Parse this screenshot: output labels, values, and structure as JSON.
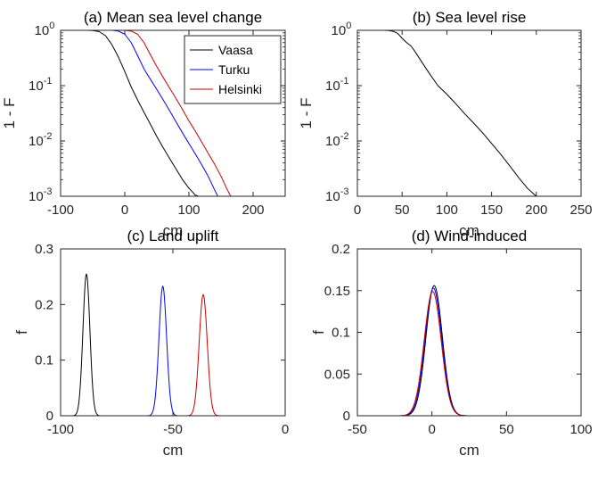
{
  "chart_data": [
    {
      "id": "a",
      "type": "line",
      "title": "(a) Mean sea level change",
      "xlabel": "cm",
      "ylabel": "1 - F",
      "xlim": [
        -100,
        250
      ],
      "ylim": [
        0.001,
        1
      ],
      "yscale": "log",
      "xticks": [
        -100,
        0,
        100,
        200
      ],
      "yticks": [
        {
          "value": 1,
          "base": "10",
          "exp": "0"
        },
        {
          "value": 0.1,
          "base": "10",
          "exp": "-1"
        },
        {
          "value": 0.01,
          "base": "10",
          "exp": "-2"
        },
        {
          "value": 0.001,
          "base": "10",
          "exp": "-3"
        }
      ],
      "legend": {
        "position": "top-right",
        "entries": [
          "Vaasa",
          "Turku",
          "Helsinki"
        ]
      },
      "series": [
        {
          "name": "Vaasa",
          "color": "#000000",
          "x": [
            -100,
            -60,
            -50,
            -40,
            -30,
            -20,
            -10,
            0,
            10,
            20,
            30,
            40,
            50,
            60,
            70,
            80,
            90,
            100,
            110,
            115
          ],
          "y": [
            1,
            1,
            0.99,
            0.95,
            0.8,
            0.55,
            0.33,
            0.18,
            0.095,
            0.055,
            0.033,
            0.02,
            0.012,
            0.0075,
            0.0048,
            0.0031,
            0.002,
            0.0014,
            0.00105,
            0.001
          ]
        },
        {
          "name": "Turku",
          "color": "#0000ff",
          "x": [
            -100,
            -20,
            -10,
            0,
            10,
            20,
            30,
            40,
            50,
            60,
            70,
            80,
            90,
            100,
            110,
            120,
            130,
            140,
            145
          ],
          "y": [
            1,
            1,
            0.97,
            0.85,
            0.6,
            0.35,
            0.2,
            0.13,
            0.085,
            0.055,
            0.035,
            0.022,
            0.014,
            0.009,
            0.0058,
            0.0037,
            0.0023,
            0.0013,
            0.001
          ]
        },
        {
          "name": "Helsinki",
          "color": "#cc0000",
          "x": [
            -100,
            0,
            10,
            20,
            30,
            40,
            50,
            60,
            70,
            80,
            90,
            100,
            110,
            120,
            130,
            140,
            150,
            160,
            165
          ],
          "y": [
            1,
            1,
            0.97,
            0.85,
            0.6,
            0.36,
            0.22,
            0.14,
            0.09,
            0.058,
            0.037,
            0.023,
            0.015,
            0.0095,
            0.006,
            0.0038,
            0.0023,
            0.0013,
            0.001
          ]
        }
      ]
    },
    {
      "id": "b",
      "type": "line",
      "title": "(b) Sea level rise",
      "xlabel": "cm",
      "ylabel": "1 - F",
      "xlim": [
        0,
        250
      ],
      "ylim": [
        0.001,
        1
      ],
      "yscale": "log",
      "xticks": [
        0,
        50,
        100,
        150,
        200,
        250
      ],
      "yticks": [
        {
          "value": 1,
          "base": "10",
          "exp": "0"
        },
        {
          "value": 0.1,
          "base": "10",
          "exp": "-1"
        },
        {
          "value": 0.01,
          "base": "10",
          "exp": "-2"
        },
        {
          "value": 0.001,
          "base": "10",
          "exp": "-3"
        }
      ],
      "series": [
        {
          "color": "#000000",
          "x": [
            20,
            30,
            35,
            40,
            45,
            50,
            55,
            60,
            65,
            70,
            80,
            90,
            100,
            110,
            120,
            130,
            140,
            150,
            160,
            170,
            180,
            190,
            200
          ],
          "y": [
            1,
            1,
            0.99,
            0.96,
            0.88,
            0.72,
            0.6,
            0.52,
            0.4,
            0.3,
            0.17,
            0.1,
            0.07,
            0.047,
            0.031,
            0.021,
            0.014,
            0.009,
            0.0058,
            0.0036,
            0.0022,
            0.0014,
            0.001
          ]
        }
      ]
    },
    {
      "id": "c",
      "type": "line",
      "title": "(c) Land uplift",
      "xlabel": "cm",
      "ylabel": "f",
      "xlim": [
        -100,
        0
      ],
      "ylim": [
        0,
        0.3
      ],
      "xticks": [
        -100,
        -50,
        0
      ],
      "yticks": [
        0,
        0.1,
        0.2,
        0.3
      ],
      "series": [
        {
          "name": "Vaasa",
          "color": "#000000",
          "peak_x": -88.5,
          "peak_y": 0.255,
          "sigma": 1.55
        },
        {
          "name": "Turku",
          "color": "#0000ff",
          "peak_x": -54.5,
          "peak_y": 0.233,
          "sigma": 1.7
        },
        {
          "name": "Helsinki",
          "color": "#cc0000",
          "peak_x": -36.5,
          "peak_y": 0.218,
          "sigma": 1.8
        }
      ]
    },
    {
      "id": "d",
      "type": "line",
      "title": "(d) Wind-induced",
      "xlabel": "cm",
      "ylabel": "f",
      "xlim": [
        -50,
        100
      ],
      "ylim": [
        0,
        0.2
      ],
      "xticks": [
        -50,
        0,
        50,
        100
      ],
      "yticks": [
        0,
        0.05,
        0.1,
        0.15,
        0.2
      ],
      "series": [
        {
          "name": "Vaasa",
          "color": "#000000",
          "peak_x": 1.5,
          "peak_y": 0.156,
          "sigma": 5.5
        },
        {
          "name": "Turku",
          "color": "#0000ff",
          "peak_x": 1.0,
          "peak_y": 0.153,
          "sigma": 5.6
        },
        {
          "name": "Helsinki",
          "color": "#cc0000",
          "peak_x": 0.5,
          "peak_y": 0.149,
          "sigma": 5.7
        }
      ]
    }
  ]
}
